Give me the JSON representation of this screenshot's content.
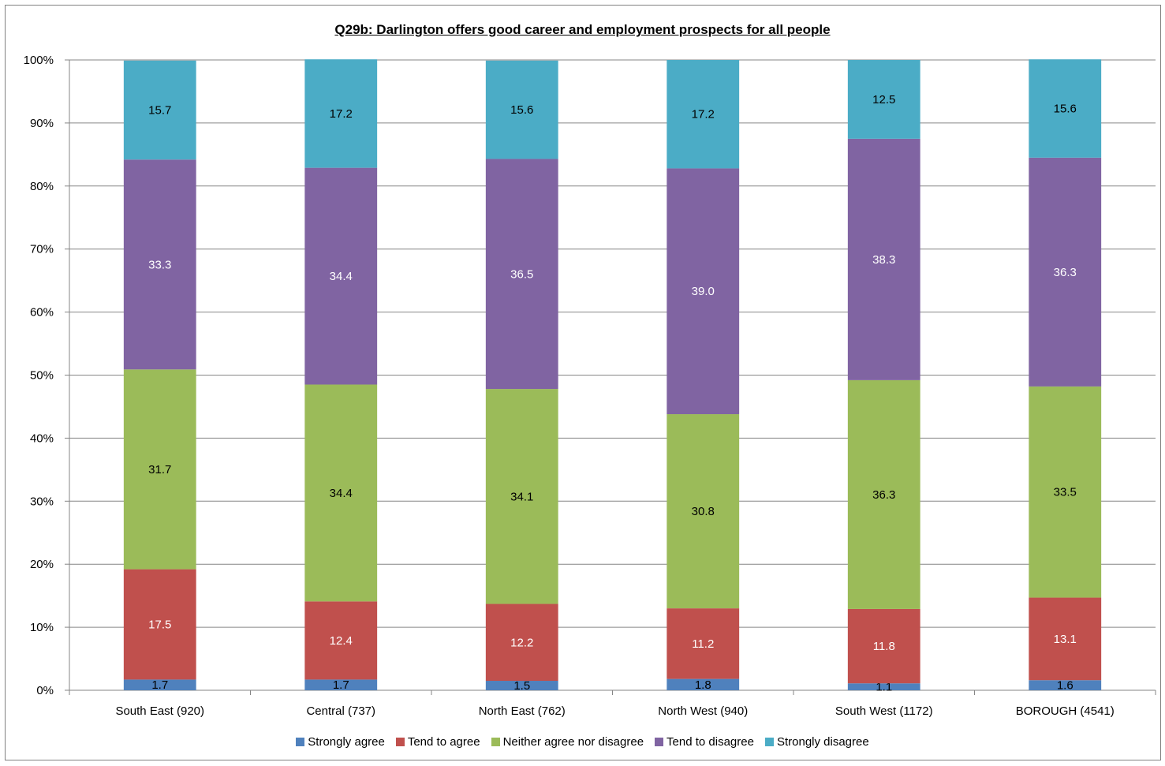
{
  "chart_data": {
    "type": "bar",
    "stacked": true,
    "title": "Q29b: Darlington offers good career and employment prospects for all people",
    "categories": [
      "South East (920)",
      "Central (737)",
      "North East (762)",
      "North West (940)",
      "South West (1172)",
      "BOROUGH (4541)"
    ],
    "ylim": [
      0,
      100
    ],
    "yticks": [
      "0%",
      "10%",
      "20%",
      "30%",
      "40%",
      "50%",
      "60%",
      "70%",
      "80%",
      "90%",
      "100%"
    ],
    "grid": true,
    "legend_position": "bottom",
    "series": [
      {
        "name": "Strongly agree",
        "color": "#4F81BD",
        "label_color": "#000000",
        "values": [
          1.7,
          1.7,
          1.5,
          1.8,
          1.1,
          1.6
        ]
      },
      {
        "name": "Tend to agree",
        "color": "#C0504D",
        "label_color": "#ffffff",
        "values": [
          17.5,
          12.4,
          12.2,
          11.2,
          11.8,
          13.1
        ]
      },
      {
        "name": "Neither agree nor disagree",
        "color": "#9BBB59",
        "label_color": "#000000",
        "values": [
          31.7,
          34.4,
          34.1,
          30.8,
          36.3,
          33.5
        ]
      },
      {
        "name": "Tend to disagree",
        "color": "#8064A2",
        "label_color": "#ffffff",
        "values": [
          33.3,
          34.4,
          36.5,
          39.0,
          38.3,
          36.3
        ]
      },
      {
        "name": "Strongly disagree",
        "color": "#4BACC6",
        "label_color": "#000000",
        "values": [
          15.7,
          17.2,
          15.6,
          17.2,
          12.5,
          15.6
        ]
      }
    ]
  }
}
